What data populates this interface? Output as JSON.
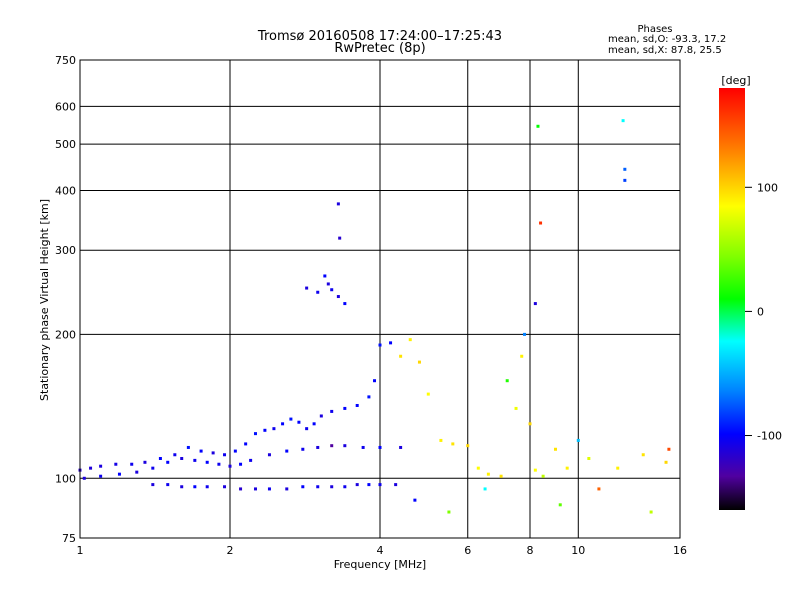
{
  "chart_data": {
    "type": "scatter",
    "title": "Tromsø 20160508 17:24:00–17:25:43",
    "subtitle": "RwPretec (8p)",
    "xlabel": "Frequency [MHz]",
    "ylabel": "Stationary phase Virtual Height [km]",
    "x_scale": "log",
    "y_scale": "log",
    "xlim": [
      1,
      16
    ],
    "ylim": [
      75,
      750
    ],
    "x_ticks": [
      1,
      2,
      4,
      6,
      8,
      10,
      16
    ],
    "y_ticks": [
      75,
      100,
      200,
      300,
      400,
      500,
      600,
      750
    ],
    "grid": true,
    "colorbar": {
      "unit": "[deg]",
      "range": [
        -160,
        180
      ],
      "ticks": [
        100,
        0,
        -100
      ]
    },
    "stats": {
      "heading": "Phases",
      "line_o": "mean, sd,O: -93.3, 17.2",
      "line_x": "mean, sd,X: 87.8, 25.5"
    },
    "series": [
      {
        "values": [
          {
            "x": 1.0,
            "y": 104,
            "p": -115
          },
          {
            "x": 1.05,
            "y": 105,
            "p": -112
          },
          {
            "x": 1.1,
            "y": 106,
            "p": -110
          },
          {
            "x": 1.18,
            "y": 107,
            "p": -108
          },
          {
            "x": 1.27,
            "y": 107,
            "p": -105
          },
          {
            "x": 1.35,
            "y": 108,
            "p": -110
          },
          {
            "x": 1.45,
            "y": 110,
            "p": -100
          },
          {
            "x": 1.55,
            "y": 112,
            "p": -105
          },
          {
            "x": 1.65,
            "y": 116,
            "p": -95
          },
          {
            "x": 1.75,
            "y": 114,
            "p": -100
          },
          {
            "x": 1.85,
            "y": 113,
            "p": -110
          },
          {
            "x": 1.95,
            "y": 112,
            "p": -105
          },
          {
            "x": 2.05,
            "y": 114,
            "p": -100
          },
          {
            "x": 2.15,
            "y": 118,
            "p": -100
          },
          {
            "x": 2.25,
            "y": 124,
            "p": -95
          },
          {
            "x": 2.35,
            "y": 126,
            "p": -100
          },
          {
            "x": 2.45,
            "y": 127,
            "p": -105
          },
          {
            "x": 2.55,
            "y": 130,
            "p": -100
          },
          {
            "x": 2.65,
            "y": 133,
            "p": -95
          },
          {
            "x": 2.75,
            "y": 131,
            "p": -100
          },
          {
            "x": 2.85,
            "y": 127,
            "p": -105
          },
          {
            "x": 2.95,
            "y": 130,
            "p": -100
          },
          {
            "x": 3.05,
            "y": 135,
            "p": -110
          },
          {
            "x": 3.2,
            "y": 138,
            "p": -105
          },
          {
            "x": 3.4,
            "y": 140,
            "p": -100
          },
          {
            "x": 3.6,
            "y": 142,
            "p": -100
          },
          {
            "x": 3.8,
            "y": 148,
            "p": -95
          },
          {
            "x": 3.9,
            "y": 160,
            "p": -100
          },
          {
            "x": 4.0,
            "y": 190,
            "p": -95
          },
          {
            "x": 4.2,
            "y": 192,
            "p": -100
          }
        ]
      },
      {
        "values": [
          {
            "x": 1.02,
            "y": 100,
            "p": -110
          },
          {
            "x": 1.1,
            "y": 101,
            "p": -105
          },
          {
            "x": 1.2,
            "y": 102,
            "p": -100
          },
          {
            "x": 1.3,
            "y": 103,
            "p": -110
          },
          {
            "x": 1.4,
            "y": 105,
            "p": -105
          },
          {
            "x": 1.5,
            "y": 108,
            "p": -100
          },
          {
            "x": 1.6,
            "y": 110,
            "p": -110
          },
          {
            "x": 1.7,
            "y": 109,
            "p": -105
          },
          {
            "x": 1.8,
            "y": 108,
            "p": -100
          },
          {
            "x": 1.9,
            "y": 107,
            "p": -105
          },
          {
            "x": 2.0,
            "y": 106,
            "p": -110
          },
          {
            "x": 2.1,
            "y": 107,
            "p": -100
          },
          {
            "x": 2.2,
            "y": 109,
            "p": -105
          },
          {
            "x": 2.4,
            "y": 112,
            "p": -110
          },
          {
            "x": 2.6,
            "y": 114,
            "p": -100
          },
          {
            "x": 2.8,
            "y": 115,
            "p": -105
          },
          {
            "x": 3.0,
            "y": 116,
            "p": -110
          },
          {
            "x": 3.2,
            "y": 117,
            "p": -130
          },
          {
            "x": 3.4,
            "y": 117,
            "p": -110
          },
          {
            "x": 3.7,
            "y": 116,
            "p": -105
          },
          {
            "x": 4.0,
            "y": 116,
            "p": -100
          },
          {
            "x": 4.4,
            "y": 116,
            "p": -110
          }
        ]
      },
      {
        "values": [
          {
            "x": 1.4,
            "y": 97,
            "p": -110
          },
          {
            "x": 1.5,
            "y": 97,
            "p": -105
          },
          {
            "x": 1.6,
            "y": 96,
            "p": -110
          },
          {
            "x": 1.7,
            "y": 96,
            "p": -100
          },
          {
            "x": 1.8,
            "y": 96,
            "p": -105
          },
          {
            "x": 1.95,
            "y": 96,
            "p": -110
          },
          {
            "x": 2.1,
            "y": 95,
            "p": -115
          },
          {
            "x": 2.25,
            "y": 95,
            "p": -110
          },
          {
            "x": 2.4,
            "y": 95,
            "p": -105
          },
          {
            "x": 2.6,
            "y": 95,
            "p": -110
          },
          {
            "x": 2.8,
            "y": 96,
            "p": -100
          },
          {
            "x": 3.0,
            "y": 96,
            "p": -105
          },
          {
            "x": 3.2,
            "y": 96,
            "p": -110
          },
          {
            "x": 3.4,
            "y": 96,
            "p": -105
          },
          {
            "x": 3.6,
            "y": 97,
            "p": -110
          },
          {
            "x": 3.8,
            "y": 97,
            "p": -100
          },
          {
            "x": 4.0,
            "y": 97,
            "p": -105
          },
          {
            "x": 4.3,
            "y": 97,
            "p": -110
          }
        ]
      },
      {
        "values": [
          {
            "x": 2.85,
            "y": 250,
            "p": -110
          },
          {
            "x": 3.0,
            "y": 245,
            "p": -105
          },
          {
            "x": 3.1,
            "y": 265,
            "p": -100
          },
          {
            "x": 3.15,
            "y": 255,
            "p": -110
          },
          {
            "x": 3.2,
            "y": 248,
            "p": -105
          },
          {
            "x": 3.3,
            "y": 240,
            "p": -110
          },
          {
            "x": 3.4,
            "y": 232,
            "p": -100
          },
          {
            "x": 3.3,
            "y": 375,
            "p": -110
          },
          {
            "x": 3.32,
            "y": 318,
            "p": -115
          }
        ]
      },
      {
        "values": [
          {
            "x": 4.4,
            "y": 180,
            "p": 90
          },
          {
            "x": 4.6,
            "y": 195,
            "p": 85
          },
          {
            "x": 4.8,
            "y": 175,
            "p": 95
          },
          {
            "x": 5.0,
            "y": 150,
            "p": 80
          },
          {
            "x": 5.3,
            "y": 120,
            "p": 85
          },
          {
            "x": 5.6,
            "y": 118,
            "p": 90
          },
          {
            "x": 6.0,
            "y": 117,
            "p": 95
          },
          {
            "x": 6.3,
            "y": 105,
            "p": 80
          },
          {
            "x": 6.6,
            "y": 102,
            "p": 85
          },
          {
            "x": 7.0,
            "y": 101,
            "p": 90
          },
          {
            "x": 7.5,
            "y": 140,
            "p": 75
          },
          {
            "x": 7.7,
            "y": 180,
            "p": 85
          },
          {
            "x": 8.0,
            "y": 130,
            "p": 95
          },
          {
            "x": 8.2,
            "y": 104,
            "p": 80
          },
          {
            "x": 8.5,
            "y": 101,
            "p": 60
          },
          {
            "x": 9.0,
            "y": 115,
            "p": 90
          },
          {
            "x": 9.5,
            "y": 105,
            "p": 85
          },
          {
            "x": 10.5,
            "y": 110,
            "p": 70
          },
          {
            "x": 12.0,
            "y": 105,
            "p": 85
          },
          {
            "x": 13.5,
            "y": 112,
            "p": 90
          },
          {
            "x": 15.0,
            "y": 108,
            "p": 95
          }
        ]
      },
      {
        "values": [
          {
            "x": 4.7,
            "y": 90,
            "p": -100
          },
          {
            "x": 5.5,
            "y": 85,
            "p": 40
          },
          {
            "x": 6.5,
            "y": 95,
            "p": -20
          },
          {
            "x": 7.2,
            "y": 160,
            "p": 10
          },
          {
            "x": 7.8,
            "y": 200,
            "p": -60
          },
          {
            "x": 8.3,
            "y": 545,
            "p": 0
          },
          {
            "x": 8.4,
            "y": 342,
            "p": 160
          },
          {
            "x": 8.2,
            "y": 232,
            "p": -110
          },
          {
            "x": 9.2,
            "y": 88,
            "p": 30
          },
          {
            "x": 10.0,
            "y": 120,
            "p": -40
          },
          {
            "x": 11.0,
            "y": 95,
            "p": 140
          },
          {
            "x": 12.3,
            "y": 560,
            "p": -20
          },
          {
            "x": 12.4,
            "y": 443,
            "p": -70
          },
          {
            "x": 12.4,
            "y": 420,
            "p": -80
          },
          {
            "x": 14.0,
            "y": 85,
            "p": 60
          },
          {
            "x": 15.2,
            "y": 115,
            "p": 150
          }
        ]
      }
    ]
  }
}
